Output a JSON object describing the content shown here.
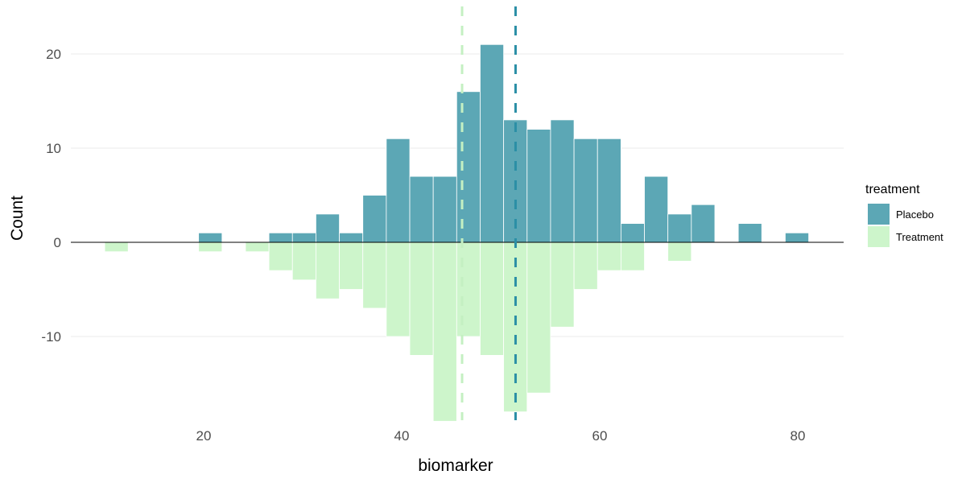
{
  "chart_data": {
    "type": "bar",
    "subtype": "mirrored histogram",
    "title": "",
    "xlabel": "biomarker",
    "ylabel": "Count",
    "xlim": [
      8,
      85
    ],
    "ylim": [
      -19,
      22
    ],
    "x_ticks": [
      20,
      40,
      60,
      80
    ],
    "y_ticks": [
      -10,
      0,
      10,
      20
    ],
    "grid": "horizontal major only",
    "bin_width": 2.37,
    "bin_centers": [
      11.19,
      13.56,
      15.93,
      18.3,
      20.67,
      23.04,
      25.41,
      27.78,
      30.15,
      32.52,
      34.89,
      37.26,
      39.63,
      42.0,
      44.37,
      46.74,
      49.11,
      51.48,
      53.85,
      56.22,
      58.59,
      60.96,
      63.33,
      65.7,
      68.07,
      70.44,
      72.81,
      75.18,
      77.55,
      79.92
    ],
    "series": [
      {
        "name": "Placebo",
        "color": "#5ca7b5",
        "values": [
          0,
          0,
          0,
          0,
          1,
          0,
          0,
          1,
          1,
          3,
          1,
          5,
          11,
          7,
          7,
          16,
          21,
          13,
          12,
          13,
          11,
          11,
          2,
          7,
          3,
          4,
          0,
          2,
          0,
          1
        ],
        "mean_line": 51.5,
        "mean_line_color": "#2b8fa6"
      },
      {
        "name": "Treatment",
        "color": "#cdf5cb",
        "values": [
          -1,
          0,
          0,
          0,
          -1,
          0,
          -1,
          -3,
          -4,
          -6,
          -5,
          -7,
          -10,
          -12,
          -19,
          -10,
          -12,
          -18,
          -16,
          -9,
          -5,
          -3,
          -3,
          0,
          -2,
          0,
          0,
          0,
          0,
          0
        ],
        "mean_line": 46.1,
        "mean_line_color": "#c4f0c2"
      }
    ],
    "legend": {
      "title": "treatment",
      "position": "right",
      "entries": [
        "Placebo",
        "Treatment"
      ]
    }
  }
}
